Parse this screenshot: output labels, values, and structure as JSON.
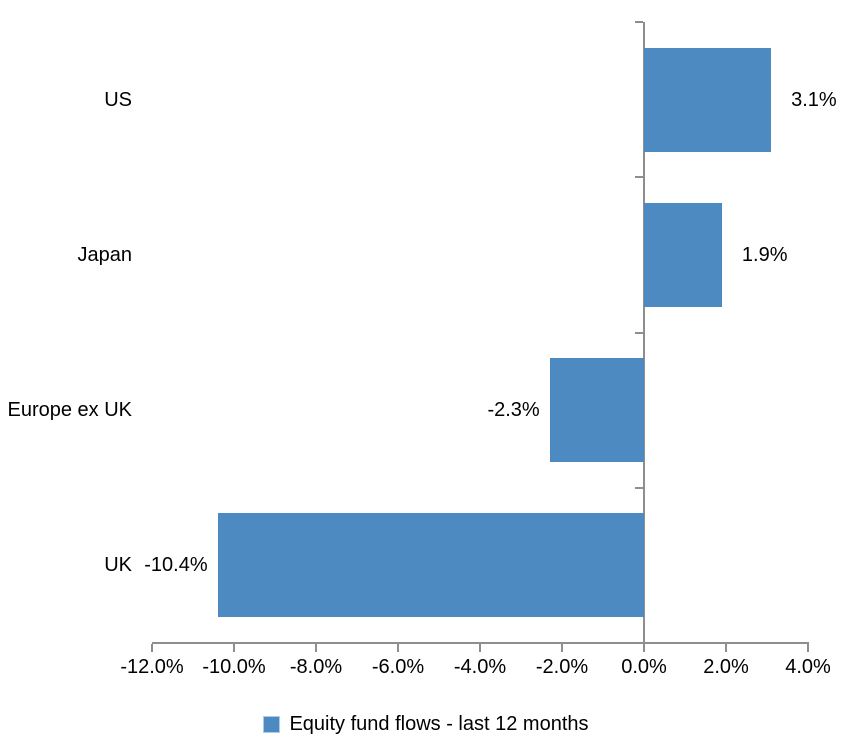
{
  "chart_data": {
    "type": "bar",
    "orientation": "horizontal",
    "title": "",
    "xlabel": "",
    "ylabel": "",
    "categories": [
      "US",
      "Japan",
      "Europe ex UK",
      "UK"
    ],
    "series": [
      {
        "name": "Equity fund flows - last 12 months",
        "values": [
          3.1,
          1.9,
          -2.3,
          -10.4
        ],
        "data_labels": [
          "3.1%",
          "1.9%",
          "-2.3%",
          "-10.4%"
        ]
      }
    ],
    "xlim": [
      -12,
      4
    ],
    "x_tick_values": [
      -12,
      -10,
      -8,
      -6,
      -4,
      -2,
      0,
      2,
      4
    ],
    "x_tick_labels": [
      "-12.0%",
      "-10.0%",
      "-8.0%",
      "-6.0%",
      "-4.0%",
      "-2.0%",
      "0.0%",
      "2.0%",
      "4.0%"
    ],
    "grid": false,
    "legend_position": "bottom",
    "colors": {
      "bar": "#4E8AC2",
      "swatch_border": "#AECBE8",
      "axis": "#8E8E8E",
      "text": "#000000",
      "background": "#FFFFFF"
    }
  }
}
